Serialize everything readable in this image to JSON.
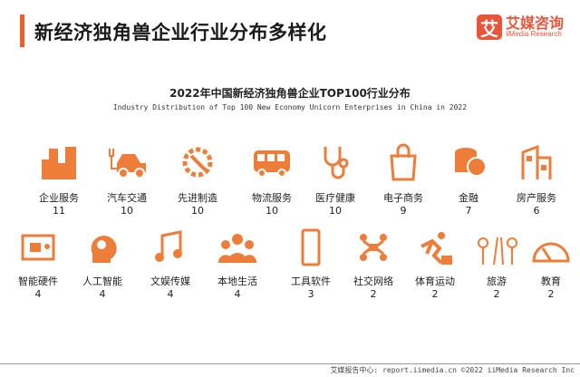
{
  "header": {
    "title": "新经济独角兽企业行业分布多样化"
  },
  "logo": {
    "mark": "艾",
    "name_cn": "艾媒咨询",
    "name_en": "iiMedia Research"
  },
  "accent_color": "#ee7d3a",
  "chart_data": {
    "type": "table",
    "title": "2022年中国新经济独角兽企业TOP100行业分布",
    "subtitle": "Industry Distribution of Top 100 New Economy Unicorn Enterprises in China in 2022",
    "items": [
      {
        "label": "企业服务",
        "value": 11,
        "icon": "buildings-icon"
      },
      {
        "label": "汽车交通",
        "value": 10,
        "icon": "electric-car-icon"
      },
      {
        "label": "先进制造",
        "value": 10,
        "icon": "gear-wrench-icon"
      },
      {
        "label": "物流服务",
        "value": 10,
        "icon": "bus-icon"
      },
      {
        "label": "医疗健康",
        "value": 10,
        "icon": "stethoscope-icon"
      },
      {
        "label": "电子商务",
        "value": 9,
        "icon": "shopping-bag-icon"
      },
      {
        "label": "金融",
        "value": 7,
        "icon": "coins-icon"
      },
      {
        "label": "房产服务",
        "value": 6,
        "icon": "house-icon"
      },
      {
        "label": "智能硬件",
        "value": 4,
        "icon": "circuit-board-icon"
      },
      {
        "label": "人工智能",
        "value": 4,
        "icon": "ai-head-icon"
      },
      {
        "label": "文娱传媒",
        "value": 4,
        "icon": "music-note-icon"
      },
      {
        "label": "本地生活",
        "value": 4,
        "icon": "people-icon"
      },
      {
        "label": "工具软件",
        "value": 3,
        "icon": "phone-icon"
      },
      {
        "label": "社交网络",
        "value": 2,
        "icon": "network-icon"
      },
      {
        "label": "体育运动",
        "value": 2,
        "icon": "athlete-icon"
      },
      {
        "label": "旅游",
        "value": 2,
        "icon": "road-trees-icon"
      },
      {
        "label": "教育",
        "value": 2,
        "icon": "protractor-icon"
      }
    ]
  },
  "footer": {
    "text": "艾媒报告中心: report.iimedia.cn  ©2022  iiMedia Research Inc"
  }
}
